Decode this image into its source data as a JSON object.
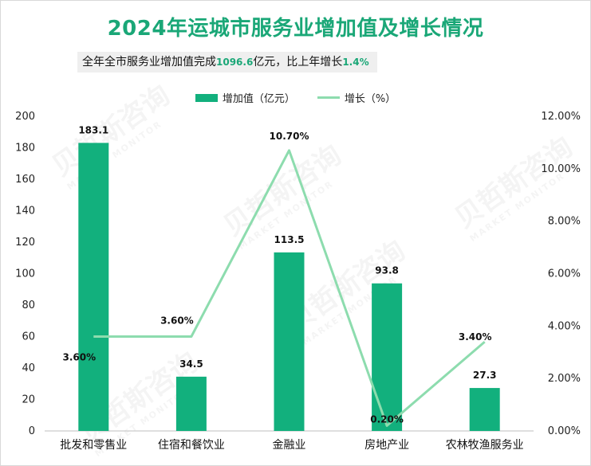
{
  "colors": {
    "bar": "#12b07d",
    "line": "#8ddcae",
    "title": "#1aa777"
  },
  "summary": {
    "prefix": "全年全市服务业增加值完成",
    "value": "1096.6",
    "mid": "亿元，比上年增长",
    "growth": "1.4%"
  },
  "watermark": {
    "cn": "贝哲斯咨询",
    "en": "MARKET MONITOR"
  },
  "chart_data": {
    "type": "bar",
    "title": "2024年运城市服务业增加值及增长情况",
    "categories": [
      "批发和零售业",
      "住宿和餐饮业",
      "金融业",
      "房地产业",
      "农林牧渔服务业"
    ],
    "series": [
      {
        "name": "增加值（亿元）",
        "type": "bar",
        "axis": "left",
        "values": [
          183.1,
          34.5,
          113.5,
          93.8,
          27.3
        ],
        "labels": [
          "183.1",
          "34.5",
          "113.5",
          "93.8",
          "27.3"
        ]
      },
      {
        "name": "增长（%）",
        "type": "line",
        "axis": "right",
        "values": [
          3.6,
          3.6,
          10.7,
          0.2,
          3.4
        ],
        "labels": [
          "3.60%",
          "3.60%",
          "10.70%",
          "0.20%",
          "3.40%"
        ]
      }
    ],
    "y_left": {
      "min": 0,
      "max": 200,
      "step": 20,
      "ticks": [
        "0",
        "20",
        "40",
        "60",
        "80",
        "100",
        "120",
        "140",
        "160",
        "180",
        "200"
      ]
    },
    "y_right": {
      "min": 0,
      "max": 12,
      "step": 2,
      "ticks": [
        "0.00%",
        "2.00%",
        "4.00%",
        "6.00%",
        "8.00%",
        "10.00%",
        "12.00%"
      ]
    },
    "legend": "top-center",
    "grid": false
  }
}
